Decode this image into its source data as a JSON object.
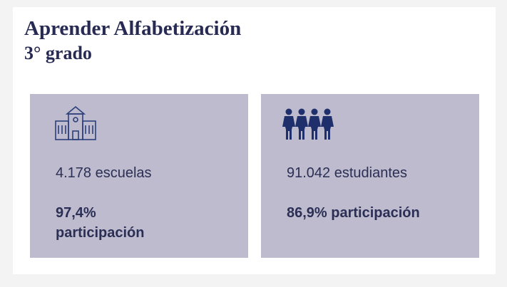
{
  "header": {
    "title": "Aprender Alfabetización",
    "subtitle": "3° grado"
  },
  "cards": [
    {
      "count": "4.178 escuelas",
      "participation": "97,4% participación"
    },
    {
      "count": "91.042 estudiantes",
      "participation": "86,9% participación"
    }
  ]
}
